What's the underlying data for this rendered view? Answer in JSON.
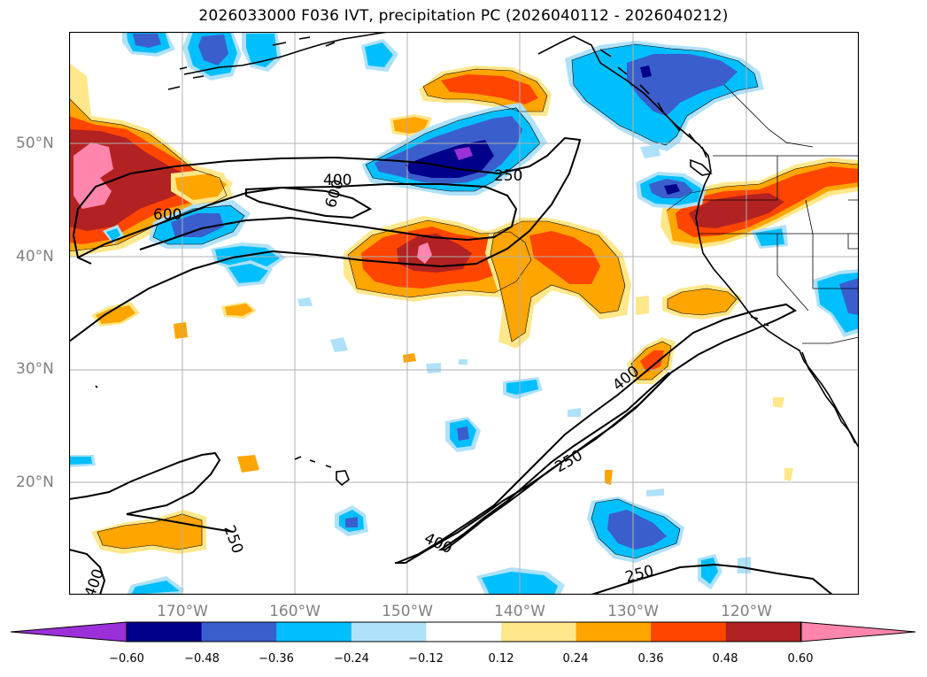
{
  "title": "2026033000 F036 IVT, precipitation PC (2026040112 - 2026040212)",
  "lat_labels": [
    "50°N",
    "40°N",
    "30°N",
    "20°N"
  ],
  "lon_labels": [
    "170°W",
    "160°W",
    "150°W",
    "140°W",
    "130°W",
    "120°W"
  ],
  "contour_labels": [
    "250",
    "400",
    "600"
  ],
  "colorbar": {
    "ticks": [
      "−0.60",
      "−0.48",
      "−0.36",
      "−0.24",
      "−0.12",
      "0.12",
      "0.24",
      "0.36",
      "0.48",
      "0.60"
    ],
    "colors": [
      "#9b30d9",
      "#00008b",
      "#3a5fcd",
      "#00bfff",
      "#afe1fa",
      "#ffffff",
      "#ffe78a",
      "#ffa500",
      "#ff4500",
      "#b22222",
      "#ff85ad"
    ]
  },
  "colors": {
    "purple": "#9b30d9",
    "navy": "#00008b",
    "blue": "#3a5fcd",
    "deepskyblue": "#00bfff",
    "lightblue": "#afe1fa",
    "yellow": "#ffe78a",
    "orange": "#ffa500",
    "orangered": "#ff4500",
    "firebrick": "#b22222",
    "pink": "#ff85ad"
  }
}
